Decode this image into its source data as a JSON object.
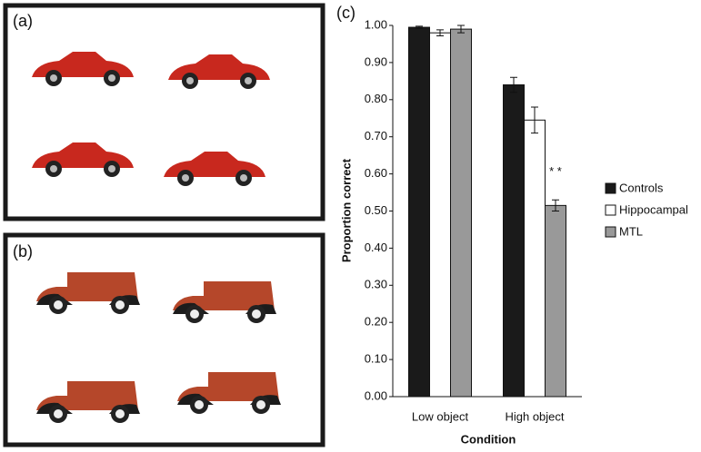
{
  "panels": {
    "a": "(a)",
    "b": "(b)"
  },
  "chart_data": {
    "type": "bar",
    "label": "(c)",
    "y_label": "Proportion correct",
    "x_label": "Condition",
    "categories": [
      "Low object",
      "High object"
    ],
    "series": [
      {
        "name": "Controls",
        "color": "#1a1a1a",
        "values": [
          0.995,
          0.84
        ],
        "errors": [
          0.003,
          0.02
        ]
      },
      {
        "name": "Hippocampal",
        "color": "#ffffff",
        "values": [
          0.98,
          0.745
        ],
        "errors": [
          0.008,
          0.035
        ]
      },
      {
        "name": "MTL",
        "color": "#999999",
        "values": [
          0.99,
          0.515
        ],
        "errors": [
          0.01,
          0.015
        ]
      }
    ],
    "annotation": "* *",
    "ylim": [
      0,
      1
    ],
    "yticks": [
      {
        "value": 0,
        "label": "0.00"
      },
      {
        "value": 0.1,
        "label": "0.10"
      },
      {
        "value": 0.2,
        "label": "0.20"
      },
      {
        "value": 0.3,
        "label": "0.30"
      },
      {
        "value": 0.4,
        "label": "0.40"
      },
      {
        "value": 0.5,
        "label": "0.50"
      },
      {
        "value": 0.6,
        "label": "0.60"
      },
      {
        "value": 0.7,
        "label": "0.70"
      },
      {
        "value": 0.8,
        "label": "0.80"
      },
      {
        "value": 0.9,
        "label": "0.90"
      },
      {
        "value": 1,
        "label": "1.00"
      }
    ]
  }
}
